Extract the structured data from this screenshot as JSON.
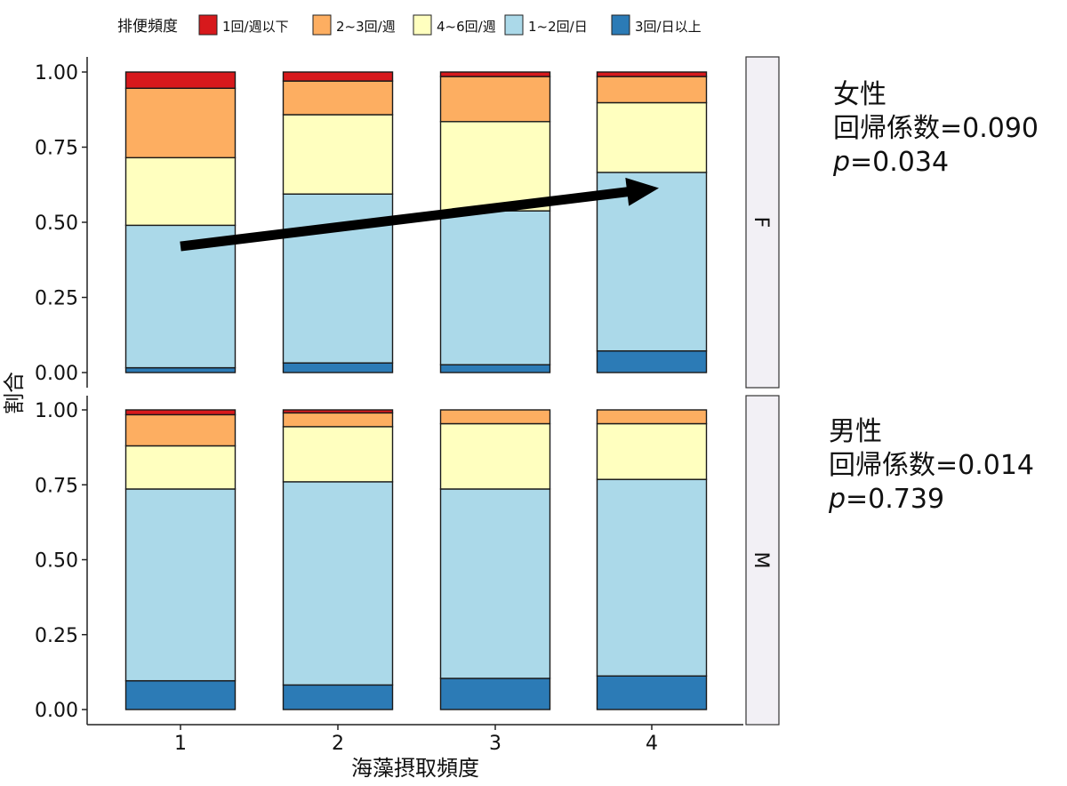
{
  "chart_data": {
    "type": "bar",
    "stacked": true,
    "xlabel": "海藻摂取頻度",
    "ylabel": "割合",
    "categories": [
      "1",
      "2",
      "3",
      "4"
    ],
    "y_ticks": [
      "0.00",
      "0.25",
      "0.50",
      "0.75",
      "1.00"
    ],
    "ylim": [
      0,
      1
    ],
    "grid": false,
    "legend": {
      "title": "排便頻度",
      "position": "top",
      "entries": [
        {
          "label": "1回/週以下",
          "color": "#d7191c"
        },
        {
          "label": "2~3回/週",
          "color": "#fdae61"
        },
        {
          "label": "4~6回/週",
          "color": "#ffffbf"
        },
        {
          "label": "1~2回/日",
          "color": "#abd9e9"
        },
        {
          "label": "3回/日以上",
          "color": "#2c7bb6"
        }
      ]
    },
    "panels": [
      {
        "facet": "F",
        "series": [
          {
            "name": "3回/日以上",
            "values": [
              0.016,
              0.032,
              0.026,
              0.072
            ]
          },
          {
            "name": "1~2回/日",
            "values": [
              0.474,
              0.562,
              0.512,
              0.594
            ]
          },
          {
            "name": "4~6回/週",
            "values": [
              0.225,
              0.264,
              0.297,
              0.232
            ]
          },
          {
            "name": "2~3回/週",
            "values": [
              0.231,
              0.112,
              0.15,
              0.087
            ]
          },
          {
            "name": "1回/週以下",
            "values": [
              0.054,
              0.03,
              0.015,
              0.015
            ]
          }
        ]
      },
      {
        "facet": "M",
        "series": [
          {
            "name": "3回/日以上",
            "values": [
              0.096,
              0.082,
              0.104,
              0.112
            ]
          },
          {
            "name": "1~2回/日",
            "values": [
              0.64,
              0.678,
              0.632,
              0.656
            ]
          },
          {
            "name": "4~6回/週",
            "values": [
              0.144,
              0.184,
              0.218,
              0.186
            ]
          },
          {
            "name": "2~3回/週",
            "values": [
              0.104,
              0.046,
              0.046,
              0.046
            ]
          },
          {
            "name": "1回/週以下",
            "values": [
              0.016,
              0.01,
              0.0,
              0.0
            ]
          }
        ]
      }
    ],
    "annotations": [
      {
        "panel": "F",
        "type": "arrow",
        "from": {
          "x": 1,
          "y": 0.42
        },
        "to": {
          "x": 4,
          "y": 0.62
        }
      }
    ]
  },
  "annotations_text": {
    "female": {
      "title": "女性",
      "coef": "回帰係数=0.090",
      "p_label": "p",
      "p_value": "=0.034"
    },
    "male": {
      "title": "男性",
      "coef": "回帰係数=0.014",
      "p_label": "p",
      "p_value": "=0.739"
    }
  }
}
